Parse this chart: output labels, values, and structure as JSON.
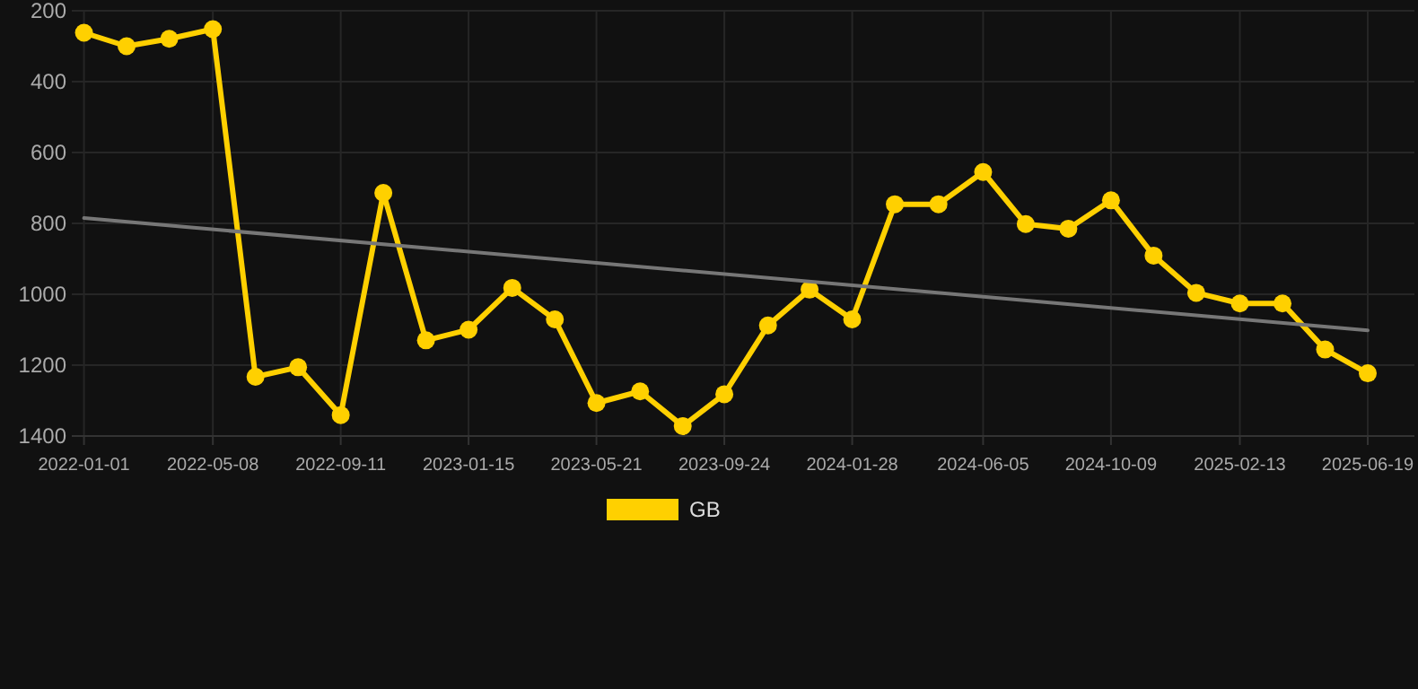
{
  "chart_data": {
    "type": "line",
    "x": [
      "2022-01-01",
      "2022-02-12",
      "2022-03-26",
      "2022-05-08",
      "2022-06-19",
      "2022-07-31",
      "2022-09-11",
      "2022-10-23",
      "2022-12-04",
      "2023-01-15",
      "2023-02-27",
      "2023-04-10",
      "2023-05-21",
      "2023-07-03",
      "2023-08-14",
      "2023-09-24",
      "2023-11-06",
      "2023-12-17",
      "2024-01-28",
      "2024-03-10",
      "2024-04-22",
      "2024-06-05",
      "2024-07-17",
      "2024-08-28",
      "2024-10-09",
      "2024-11-20",
      "2025-01-01",
      "2025-02-13",
      "2025-03-27",
      "2025-05-08",
      "2025-06-19"
    ],
    "series": [
      {
        "name": "GB",
        "color": "#ffd000",
        "marker": "circle",
        "values": [
          262,
          300,
          279,
          252,
          1233,
          1206,
          1341,
          714,
          1130,
          1100,
          982,
          1071,
          1307,
          1274,
          1372,
          1282,
          1088,
          987,
          1071,
          746,
          746,
          655,
          802,
          815,
          735,
          891,
          996,
          1026,
          1026,
          1156,
          1223
        ]
      },
      {
        "type": "line",
        "color": "#777777",
        "marker": "none",
        "x": [
          "2022-01-01",
          "2025-06-19"
        ],
        "values": [
          785,
          1102
        ]
      }
    ],
    "ylim": [
      1400,
      200
    ],
    "yticks": [
      200,
      400,
      600,
      800,
      1000,
      1200,
      1400
    ],
    "xlim": [
      "2021-12-20",
      "2025-08-04"
    ],
    "xticks": [
      {
        "value": "2022-01-01",
        "label": "2022-01-01"
      },
      {
        "value": "2022-05-08",
        "label": "2022-05-08"
      },
      {
        "value": "2022-09-11",
        "label": "2022-09-11"
      },
      {
        "value": "2023-01-15",
        "label": "2023-01-15"
      },
      {
        "value": "2023-05-21",
        "label": "2023-05-21"
      },
      {
        "value": "2023-09-24",
        "label": "2023-09-24"
      },
      {
        "value": "2024-01-28",
        "label": "2024-01-28"
      },
      {
        "value": "2024-06-05",
        "label": "2024-06-05"
      },
      {
        "value": "2024-10-09",
        "label": "2024-10-09"
      },
      {
        "value": "2025-02-13",
        "label": "2025-02-13"
      },
      {
        "value": "2025-06-19",
        "label": "2025-06-19"
      }
    ],
    "grid": true,
    "legend": "bottom"
  }
}
